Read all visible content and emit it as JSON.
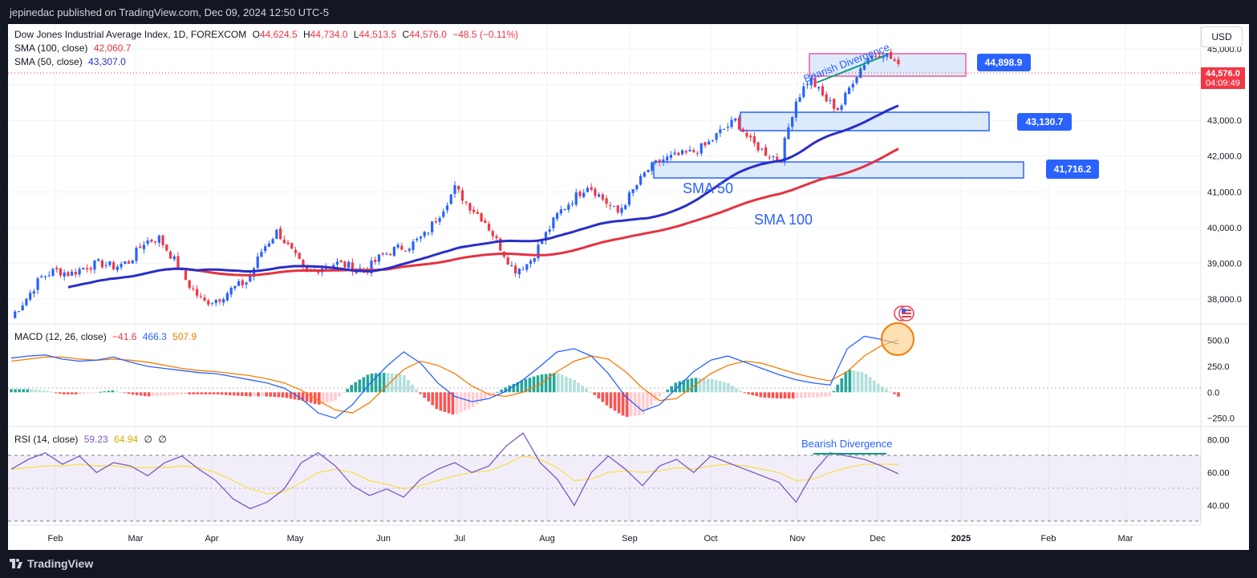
{
  "header": {
    "publisher_text": "jepinedac published on TradingView.com, Dec 09, 2024 12:50 UTC-5"
  },
  "footer": {
    "brand": "TradingView"
  },
  "currency_button": "USD",
  "legend": {
    "title": "Dow Jones Industrial Average Index, 1D, FOREXCOM",
    "ohlc": [
      {
        "k": "O",
        "v": "44,624.5"
      },
      {
        "k": "H",
        "v": "44,734.0"
      },
      {
        "k": "L",
        "v": "44,513.5"
      },
      {
        "k": "C",
        "v": "44,576.0"
      }
    ],
    "change": "−48.5 (−0.11%)",
    "sma100_label": "SMA (100, close)",
    "sma100_value": "42,060.7",
    "sma50_label": "SMA (50, close)",
    "sma50_value": "43,307.0",
    "macd_label": "MACD (12, 26, close)",
    "macd_hist": "−41.6",
    "macd_line": "466.3",
    "macd_signal": "507.9",
    "rsi_label": "RSI (14, close)",
    "rsi_value": "59.23",
    "rsi_ma": "64.94",
    "rsi_extra1": "∅",
    "rsi_extra2": "∅"
  },
  "price_badges": {
    "last_price": "44,576.0",
    "countdown": "04:09:49",
    "zone_top": "44,898.9",
    "zone_mid": "43,130.7",
    "zone_low": "41,716.2"
  },
  "annotations": {
    "bearish_div_price": "Bearish Divergence",
    "sma50": "SMA 50",
    "sma100": "SMA 100",
    "bearish_div_rsi": "Bearish Divergence"
  },
  "colors": {
    "up": "#2962ff",
    "down": "#f23645",
    "sma50": "#2a2ec8",
    "sma100": "#e53240",
    "zone_fill": "#d6e6fb",
    "zone_stroke": "#2962ff",
    "top_zone_stroke": "#ec5b9b",
    "macd_line": "#2962ff",
    "macd_signal": "#f57c00",
    "rsi_line": "#7e57c2",
    "rsi_ma": "#f7e052",
    "badge_blue": "#2962ff",
    "badge_red": "#f23645",
    "divergence": "#089981"
  },
  "chart_data": [
    {
      "type": "candlestick",
      "title": "Dow Jones Industrial Average Index, 1D, FOREXCOM",
      "ylim": [
        37300,
        45700
      ],
      "y_ticks": [
        "45,000.0",
        "44,000.0",
        "43,000.0",
        "42,000.0",
        "41,000.0",
        "40,000.0",
        "39,000.0",
        "38,000.0"
      ],
      "x_ticks": [
        "Feb",
        "Mar",
        "Apr",
        "May",
        "Jun",
        "Jul",
        "Aug",
        "Sep",
        "Oct",
        "Nov",
        "Dec",
        "2025",
        "Feb",
        "Mar"
      ],
      "close_path_approx": [
        [
          0,
          37500
        ],
        [
          5,
          38000
        ],
        [
          10,
          38600
        ],
        [
          15,
          38800
        ],
        [
          20,
          38700
        ],
        [
          25,
          38900
        ],
        [
          30,
          39000
        ],
        [
          35,
          38900
        ],
        [
          40,
          39050
        ],
        [
          45,
          39600
        ],
        [
          50,
          39700
        ],
        [
          55,
          39100
        ],
        [
          60,
          38400
        ],
        [
          65,
          37900
        ],
        [
          70,
          38000
        ],
        [
          75,
          38300
        ],
        [
          80,
          38500
        ],
        [
          85,
          39400
        ],
        [
          90,
          39900
        ],
        [
          95,
          39300
        ],
        [
          100,
          38700
        ],
        [
          105,
          38900
        ],
        [
          110,
          39000
        ],
        [
          115,
          38900
        ],
        [
          120,
          38800
        ],
        [
          125,
          39200
        ],
        [
          130,
          39400
        ],
        [
          135,
          39500
        ],
        [
          140,
          39800
        ],
        [
          145,
          40400
        ],
        [
          150,
          41100
        ],
        [
          155,
          40600
        ],
        [
          160,
          40200
        ],
        [
          165,
          39500
        ],
        [
          170,
          38800
        ],
        [
          175,
          39000
        ],
        [
          180,
          39700
        ],
        [
          185,
          40400
        ],
        [
          190,
          40800
        ],
        [
          195,
          41200
        ],
        [
          200,
          40800
        ],
        [
          205,
          40400
        ],
        [
          210,
          41000
        ],
        [
          215,
          41600
        ],
        [
          220,
          41900
        ],
        [
          225,
          42000
        ],
        [
          230,
          42100
        ],
        [
          235,
          42300
        ],
        [
          240,
          42700
        ],
        [
          245,
          43000
        ],
        [
          250,
          42400
        ],
        [
          255,
          42100
        ],
        [
          260,
          41900
        ],
        [
          265,
          43500
        ],
        [
          270,
          44200
        ],
        [
          275,
          43600
        ],
        [
          280,
          43300
        ],
        [
          285,
          44200
        ],
        [
          290,
          44800
        ],
        [
          295,
          44900
        ],
        [
          300,
          44576
        ]
      ],
      "series": [
        {
          "name": "SMA (100, close)",
          "last": 42060.7
        },
        {
          "name": "SMA (50, close)",
          "last": 43307.0
        }
      ],
      "zones": [
        {
          "low": 44450,
          "high": 45150,
          "label": "44,898.9"
        },
        {
          "low": 42850,
          "high": 43400,
          "label": "43,130.7"
        },
        {
          "low": 41550,
          "high": 42000,
          "label": "41,716.2"
        }
      ]
    },
    {
      "type": "line",
      "title": "MACD (12, 26, close)",
      "ylim": [
        -330,
        660
      ],
      "y_ticks": [
        "500.0",
        "250.0",
        "0.0",
        "−250.0"
      ],
      "series": [
        {
          "name": "MACD",
          "values": [
            330,
            350,
            360,
            320,
            300,
            310,
            340,
            290,
            250,
            230,
            210,
            190,
            180,
            150,
            120,
            90,
            40,
            -60,
            -200,
            -250,
            -120,
            80,
            250,
            390,
            280,
            90,
            -40,
            -90,
            -60,
            10,
            120,
            250,
            390,
            420,
            350,
            180,
            -40,
            -180,
            -120,
            40,
            200,
            310,
            350,
            290,
            230,
            170,
            120,
            90,
            70,
            420,
            540,
            510,
            466.3
          ]
        },
        {
          "name": "Signal",
          "values": [
            300,
            320,
            340,
            340,
            320,
            310,
            320,
            310,
            290,
            260,
            230,
            210,
            200,
            180,
            160,
            130,
            90,
            20,
            -80,
            -170,
            -200,
            -100,
            60,
            220,
            300,
            260,
            180,
            60,
            -20,
            -40,
            0,
            80,
            200,
            300,
            350,
            320,
            200,
            40,
            -80,
            -60,
            60,
            180,
            260,
            300,
            280,
            230,
            180,
            140,
            110,
            200,
            350,
            450,
            507.9
          ]
        }
      ]
    },
    {
      "type": "line",
      "title": "RSI (14, close)",
      "ylim": [
        28,
        88
      ],
      "y_ticks": [
        "80.00",
        "60.00",
        "40.00"
      ],
      "levels": [
        70,
        50,
        30
      ],
      "series": [
        {
          "name": "RSI",
          "values": [
            62,
            68,
            72,
            65,
            70,
            60,
            66,
            64,
            58,
            66,
            70,
            62,
            55,
            44,
            38,
            42,
            50,
            66,
            72,
            64,
            52,
            46,
            50,
            45,
            56,
            62,
            66,
            60,
            64,
            76,
            84,
            66,
            56,
            40,
            60,
            70,
            62,
            52,
            64,
            68,
            60,
            70,
            66,
            62,
            58,
            54,
            42,
            60,
            72,
            70,
            68,
            64,
            59.23
          ]
        },
        {
          "name": "RSI-based MA",
          "values": [
            62,
            63,
            64,
            64,
            65,
            64,
            64,
            63,
            63,
            63,
            64,
            63,
            60,
            55,
            50,
            47,
            48,
            54,
            60,
            62,
            60,
            55,
            53,
            50,
            52,
            55,
            58,
            60,
            61,
            65,
            70,
            68,
            63,
            55,
            56,
            60,
            61,
            60,
            61,
            63,
            62,
            64,
            65,
            64,
            62,
            60,
            55,
            56,
            60,
            63,
            65,
            65,
            64.94
          ]
        }
      ]
    }
  ]
}
